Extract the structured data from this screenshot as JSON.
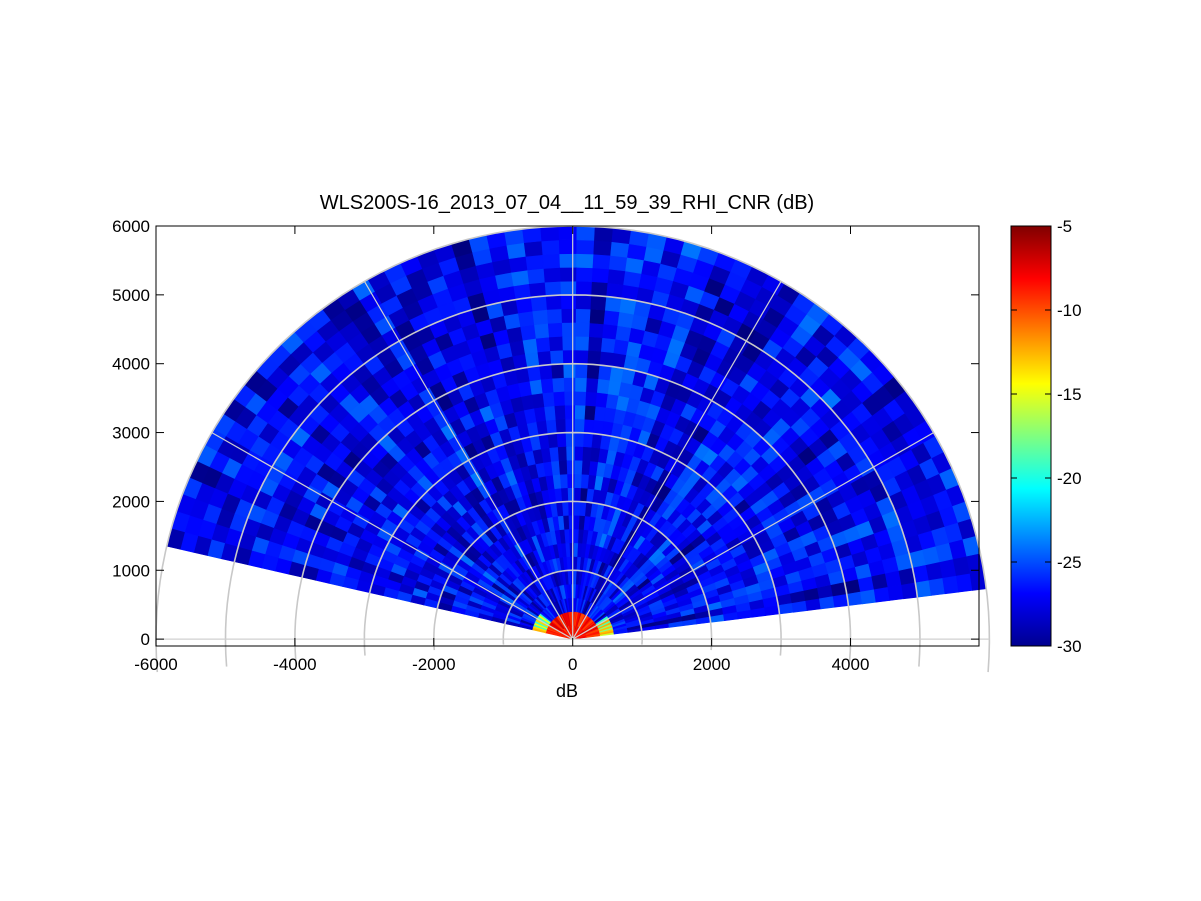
{
  "chart_data": {
    "type": "heatmap",
    "subtype": "polar-rhi-sector",
    "title": "WLS200S-16_2013_07_04__11_59_39_RHI_CNR (dB)",
    "xlabel": "dB",
    "ylabel": "",
    "xlim": [
      -6000,
      5850
    ],
    "ylim": [
      -100,
      6000
    ],
    "x_ticks": [
      -6000,
      -4000,
      -2000,
      0,
      2000,
      4000
    ],
    "y_ticks": [
      0,
      1000,
      2000,
      3000,
      4000,
      5000,
      6000
    ],
    "x_tick_labels": [
      "-6000",
      "-4000",
      "-2000",
      "0",
      "2000",
      "4000"
    ],
    "y_tick_labels": [
      "0",
      "1000",
      "2000",
      "3000",
      "4000",
      "5000",
      "6000"
    ],
    "grid": true,
    "range_rings": [
      1000,
      2000,
      3000,
      4000,
      5000,
      6000
    ],
    "spokes_deg": [
      0,
      30,
      60,
      90,
      120,
      150,
      180
    ],
    "scan": {
      "elevation_start_deg": 7,
      "elevation_end_deg": 167,
      "max_range": 6000,
      "background_cnr_db": -27,
      "near_field_cnr_db": -7,
      "near_field_range": 400
    },
    "colorbar": {
      "min": -30,
      "max": -5,
      "tick_values": [
        -5,
        -10,
        -15,
        -20,
        -25,
        -30
      ],
      "tick_labels": [
        "-5",
        "-10",
        "-15",
        "-20",
        "-25",
        "-30"
      ],
      "colormap": "jet"
    },
    "legend": "colorbar-right"
  }
}
